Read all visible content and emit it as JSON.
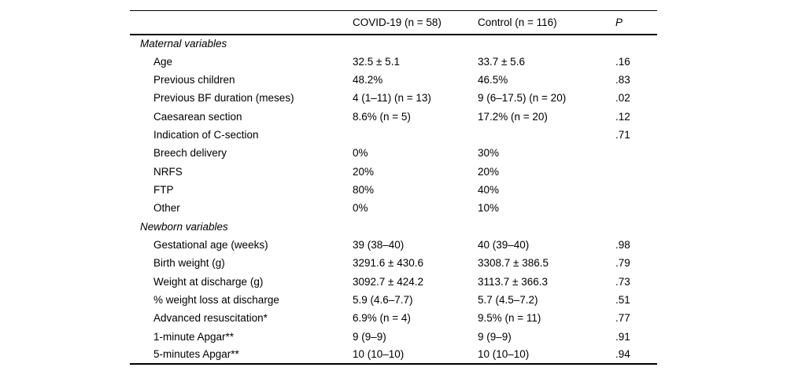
{
  "table": {
    "columns": {
      "label": "",
      "covid": "COVID-19 (n = 58)",
      "control": "Control (n = 116)",
      "p": "P"
    },
    "rows": [
      {
        "type": "section",
        "label": "Maternal variables",
        "covid": "",
        "control": "",
        "p": ""
      },
      {
        "type": "item",
        "label": "Age",
        "covid": "32.5 ± 5.1",
        "control": "33.7 ± 5.6",
        "p": ".16"
      },
      {
        "type": "item",
        "label": "Previous children",
        "covid": "48.2%",
        "control": "46.5%",
        "p": ".83"
      },
      {
        "type": "item",
        "label": "Previous BF duration (meses)",
        "covid": "4 (1–11) (n = 13)",
        "control": "9 (6–17.5) (n = 20)",
        "p": ".02"
      },
      {
        "type": "item",
        "label": "Caesarean section",
        "covid": "8.6% (n = 5)",
        "control": "17.2% (n = 20)",
        "p": ".12"
      },
      {
        "type": "item",
        "label": "Indication of C-section",
        "covid": "",
        "control": "",
        "p": ".71"
      },
      {
        "type": "item",
        "label": "Breech delivery",
        "covid": "0%",
        "control": "30%",
        "p": ""
      },
      {
        "type": "item",
        "label": "NRFS",
        "covid": "20%",
        "control": "20%",
        "p": ""
      },
      {
        "type": "item",
        "label": "FTP",
        "covid": "80%",
        "control": "40%",
        "p": ""
      },
      {
        "type": "item",
        "label": "Other",
        "covid": "0%",
        "control": "10%",
        "p": ""
      },
      {
        "type": "section",
        "label": "Newborn variables",
        "covid": "",
        "control": "",
        "p": ""
      },
      {
        "type": "item",
        "label": "Gestational age (weeks)",
        "covid": "39 (38–40)",
        "control": "40 (39–40)",
        "p": ".98"
      },
      {
        "type": "item",
        "label": "Birth weight (g)",
        "covid": "3291.6 ± 430.6",
        "control": "3308.7 ± 386.5",
        "p": ".79"
      },
      {
        "type": "item",
        "label": "Weight at discharge (g)",
        "covid": "3092.7 ± 424.2",
        "control": "3113.7 ± 366.3",
        "p": ".73"
      },
      {
        "type": "item",
        "label": "% weight loss at discharge",
        "covid": "5.9 (4.6–7.7)",
        "control": "5.7 (4.5–7.2)",
        "p": ".51"
      },
      {
        "type": "item",
        "label": "Advanced resuscitation*",
        "covid": "6.9% (n = 4)",
        "control": "9.5% (n = 11)",
        "p": ".77"
      },
      {
        "type": "item",
        "label": "1-minute Apgar**",
        "covid": "9 (9–9)",
        "control": "9 (9–9)",
        "p": ".91"
      },
      {
        "type": "item",
        "label": "5-minutes Apgar**",
        "covid": "10 (10–10)",
        "control": "10 (10–10)",
        "p": ".94"
      }
    ]
  }
}
